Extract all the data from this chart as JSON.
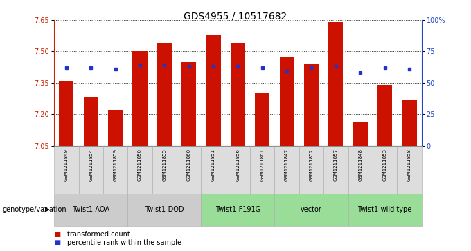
{
  "title": "GDS4955 / 10517682",
  "samples": [
    "GSM1211849",
    "GSM1211854",
    "GSM1211859",
    "GSM1211850",
    "GSM1211855",
    "GSM1211860",
    "GSM1211851",
    "GSM1211856",
    "GSM1211861",
    "GSM1211847",
    "GSM1211852",
    "GSM1211857",
    "GSM1211848",
    "GSM1211853",
    "GSM1211858"
  ],
  "bar_values": [
    7.36,
    7.28,
    7.22,
    7.5,
    7.54,
    7.45,
    7.58,
    7.54,
    7.3,
    7.47,
    7.44,
    7.64,
    7.16,
    7.34,
    7.27
  ],
  "percentile_values": [
    62,
    62,
    61,
    64,
    64,
    63,
    63,
    63,
    62,
    59,
    62,
    63,
    58,
    62,
    61
  ],
  "groups": [
    {
      "label": "Twist1-AQA",
      "start": 0,
      "end": 3,
      "color": "#cccccc"
    },
    {
      "label": "Twist1-DQD",
      "start": 3,
      "end": 6,
      "color": "#cccccc"
    },
    {
      "label": "Twist1-F191G",
      "start": 6,
      "end": 9,
      "color": "#99dd99"
    },
    {
      "label": "vector",
      "start": 9,
      "end": 12,
      "color": "#99dd99"
    },
    {
      "label": "Twist1-wild type",
      "start": 12,
      "end": 15,
      "color": "#99dd99"
    }
  ],
  "ymin": 7.05,
  "ymax": 7.65,
  "yticks": [
    7.05,
    7.2,
    7.35,
    7.5,
    7.65
  ],
  "right_yticks": [
    0,
    25,
    50,
    75,
    100
  ],
  "bar_color": "#cc1100",
  "dot_color": "#2233cc",
  "bar_width": 0.6,
  "legend_items": [
    {
      "label": "transformed count",
      "color": "#cc1100"
    },
    {
      "label": "percentile rank within the sample",
      "color": "#2233cc"
    }
  ],
  "xlabel_left": "genotype/variation",
  "title_fontsize": 10,
  "tick_fontsize": 7,
  "label_fontsize": 7,
  "sample_fontsize": 5,
  "group_fontsize": 7
}
